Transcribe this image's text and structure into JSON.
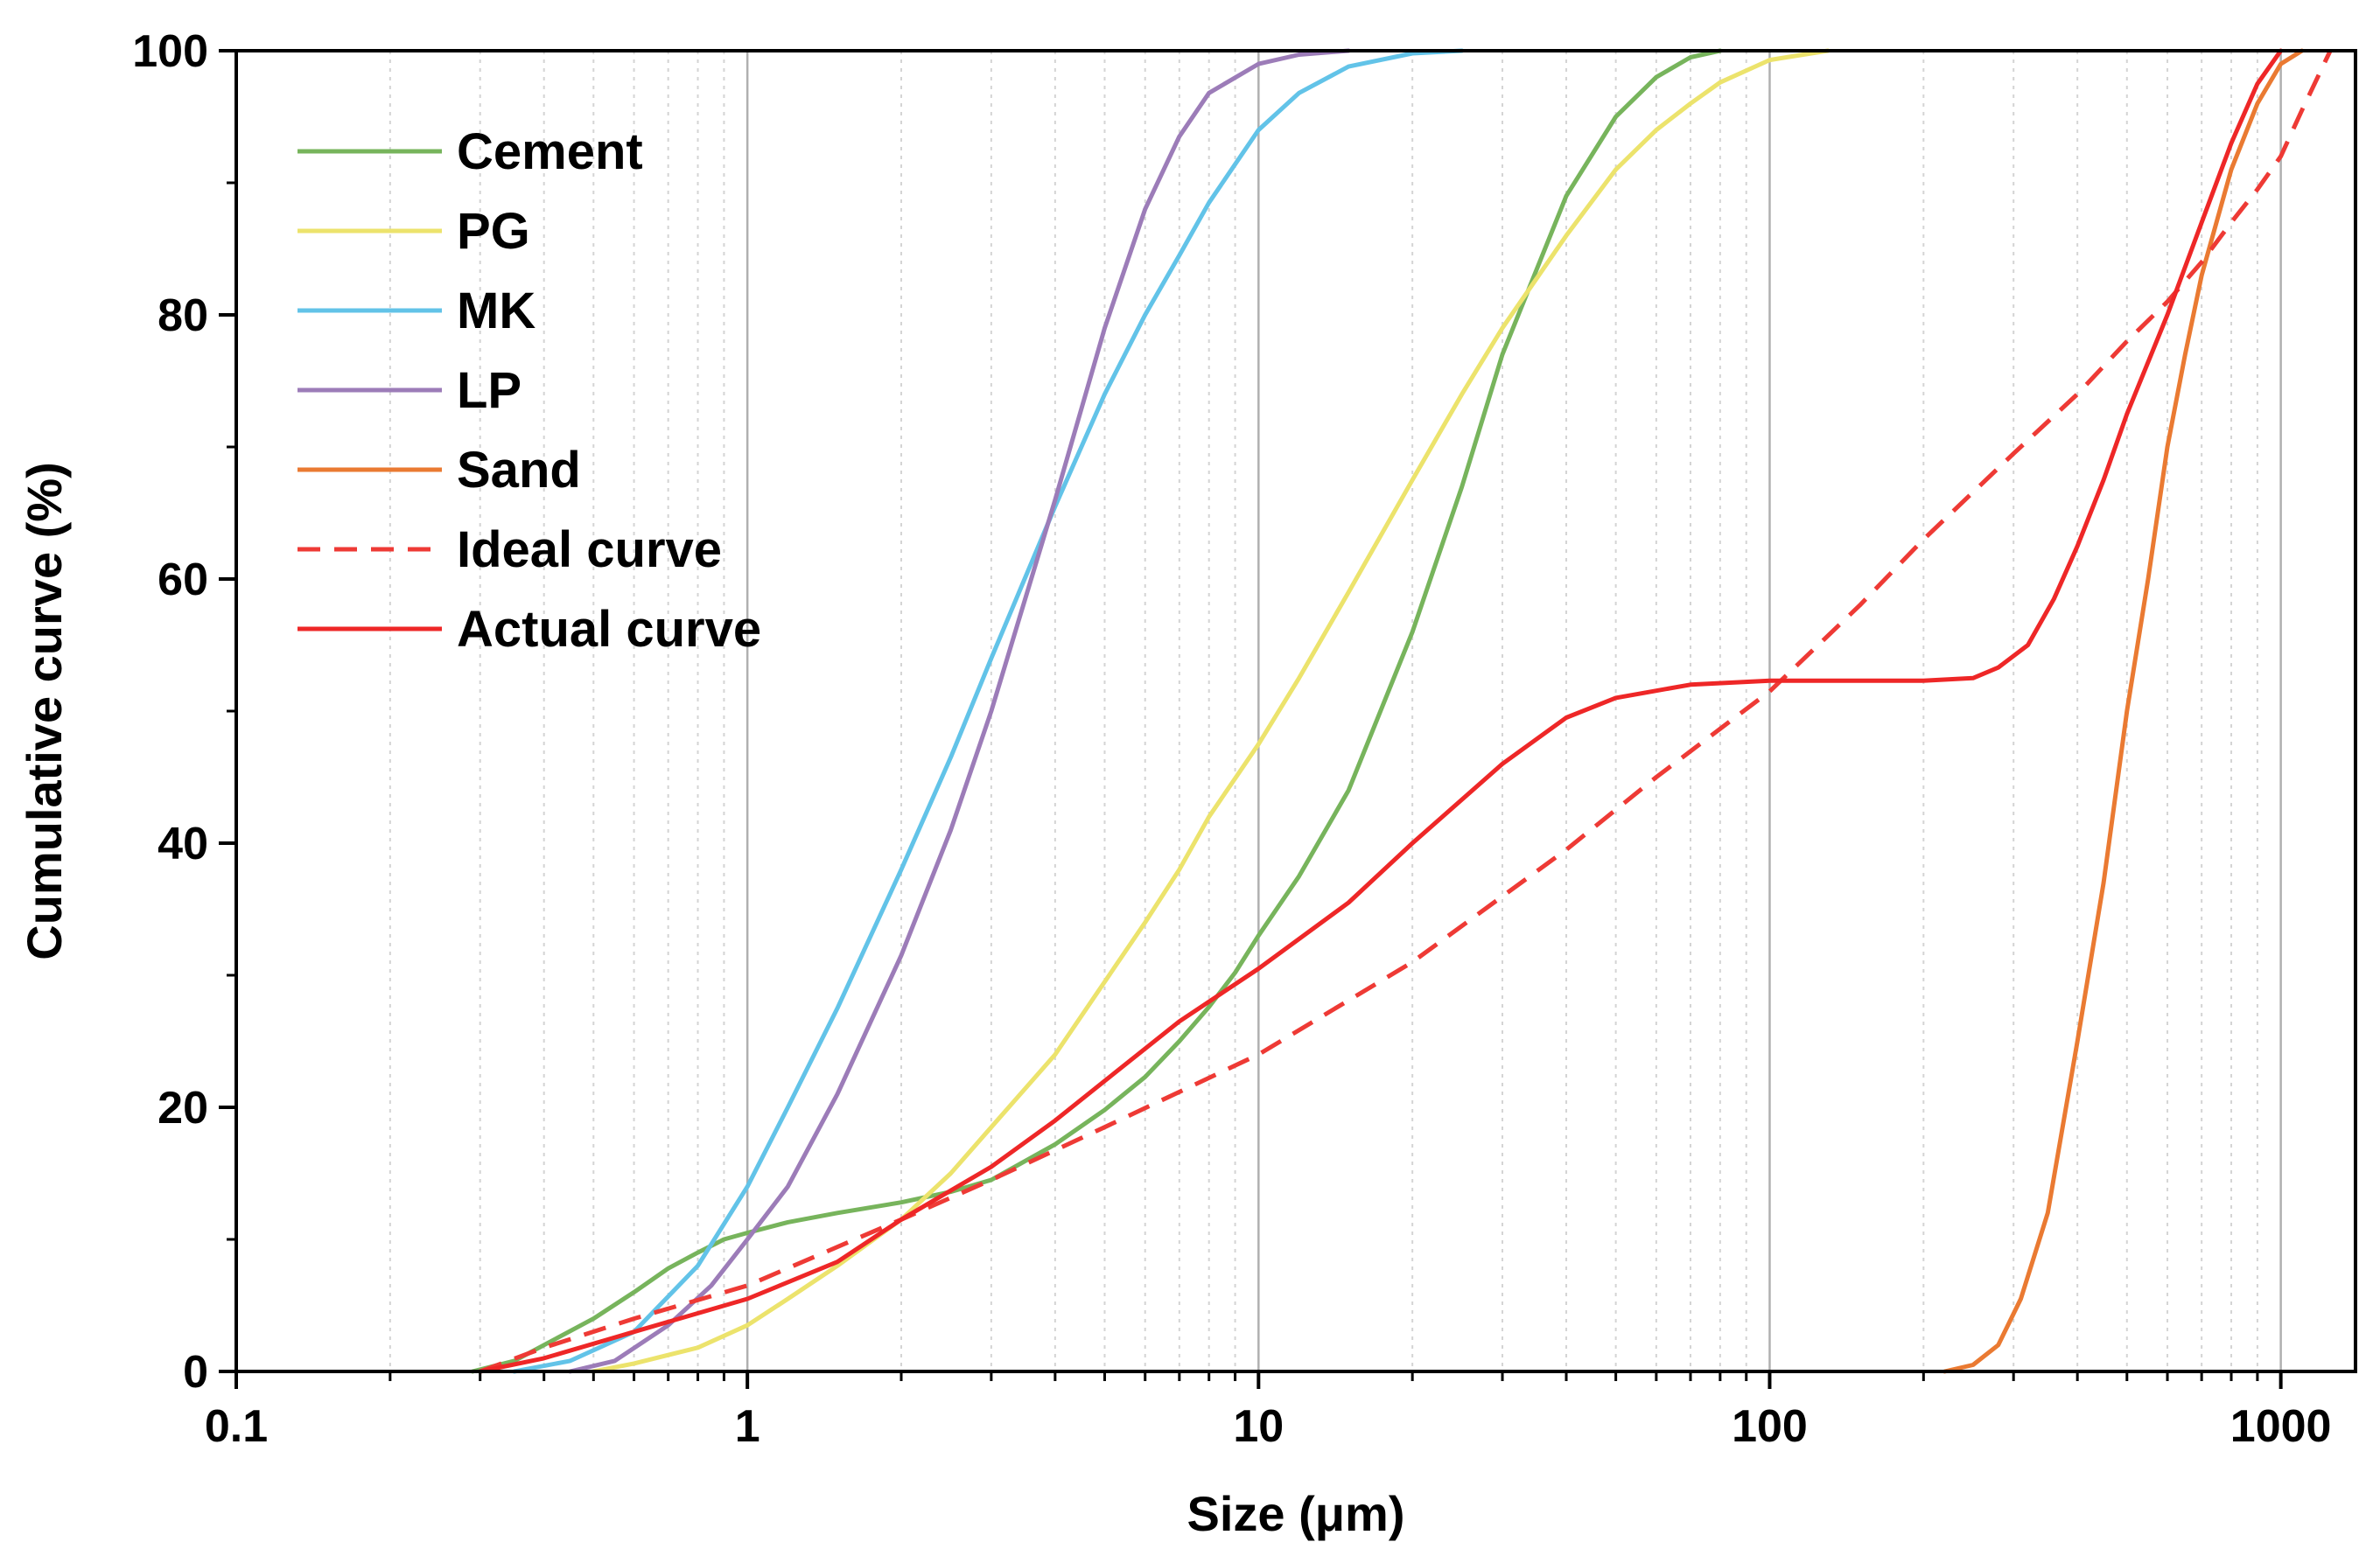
{
  "chart_data": {
    "type": "line",
    "title": "",
    "xlabel": "Size (μm)",
    "ylabel": "Cumulative curve (%)",
    "xscale": "log",
    "xlim": [
      0.1,
      1400
    ],
    "ylim": [
      0,
      100
    ],
    "x_ticks": [
      0.1,
      1,
      10,
      100,
      1000
    ],
    "x_tick_labels": [
      "0.1",
      "1",
      "10",
      "100",
      "1000"
    ],
    "y_ticks": [
      0,
      20,
      40,
      60,
      80,
      100
    ],
    "y_tick_labels": [
      "0",
      "20",
      "40",
      "60",
      "80",
      "100"
    ],
    "grid": "vertical",
    "legend_position": "top-left",
    "series": [
      {
        "name": "Cement",
        "color": "#77b45c",
        "dash": "solid",
        "points": [
          [
            0.29,
            0
          ],
          [
            0.35,
            0.8
          ],
          [
            0.4,
            2
          ],
          [
            0.5,
            4
          ],
          [
            0.6,
            6
          ],
          [
            0.7,
            7.8
          ],
          [
            0.8,
            9
          ],
          [
            0.9,
            10
          ],
          [
            1,
            10.5
          ],
          [
            1.2,
            11.3
          ],
          [
            1.5,
            12
          ],
          [
            2,
            12.8
          ],
          [
            2.5,
            13.6
          ],
          [
            3,
            14.5
          ],
          [
            4,
            17.2
          ],
          [
            5,
            19.8
          ],
          [
            6,
            22.3
          ],
          [
            7,
            25
          ],
          [
            8,
            27.6
          ],
          [
            9,
            30.2
          ],
          [
            10,
            33
          ],
          [
            12,
            37.5
          ],
          [
            15,
            44
          ],
          [
            20,
            56
          ],
          [
            25,
            67
          ],
          [
            30,
            77
          ],
          [
            40,
            89
          ],
          [
            50,
            95
          ],
          [
            60,
            98
          ],
          [
            70,
            99.5
          ],
          [
            80,
            100
          ]
        ]
      },
      {
        "name": "PG",
        "color": "#ece36c",
        "dash": "solid",
        "points": [
          [
            0.5,
            0
          ],
          [
            0.6,
            0.6
          ],
          [
            0.8,
            1.8
          ],
          [
            1,
            3.5
          ],
          [
            1.2,
            5.5
          ],
          [
            1.5,
            8
          ],
          [
            2,
            11.5
          ],
          [
            2.5,
            15
          ],
          [
            3,
            18.5
          ],
          [
            4,
            24
          ],
          [
            5,
            29.5
          ],
          [
            6,
            34
          ],
          [
            7,
            38
          ],
          [
            8,
            42
          ],
          [
            10,
            47.5
          ],
          [
            12,
            52.5
          ],
          [
            15,
            59
          ],
          [
            20,
            67.5
          ],
          [
            25,
            74
          ],
          [
            30,
            79
          ],
          [
            40,
            86
          ],
          [
            50,
            91
          ],
          [
            60,
            94
          ],
          [
            70,
            96
          ],
          [
            80,
            97.6
          ],
          [
            100,
            99.3
          ],
          [
            130,
            100
          ]
        ]
      },
      {
        "name": "MK",
        "color": "#62c3e8",
        "dash": "solid",
        "points": [
          [
            0.35,
            0
          ],
          [
            0.45,
            0.8
          ],
          [
            0.6,
            3
          ],
          [
            0.8,
            8
          ],
          [
            1,
            14
          ],
          [
            1.2,
            20
          ],
          [
            1.5,
            27.5
          ],
          [
            2,
            38
          ],
          [
            2.5,
            46.5
          ],
          [
            3,
            54
          ],
          [
            4,
            65.5
          ],
          [
            5,
            74
          ],
          [
            6,
            80
          ],
          [
            7,
            84.5
          ],
          [
            8,
            88.5
          ],
          [
            10,
            94
          ],
          [
            12,
            96.8
          ],
          [
            15,
            98.8
          ],
          [
            20,
            99.8
          ],
          [
            25,
            100
          ]
        ]
      },
      {
        "name": "LP",
        "color": "#9c7cb8",
        "dash": "solid",
        "points": [
          [
            0.45,
            0
          ],
          [
            0.55,
            0.8
          ],
          [
            0.7,
            3.5
          ],
          [
            0.85,
            6.5
          ],
          [
            1,
            10
          ],
          [
            1.2,
            14
          ],
          [
            1.5,
            21
          ],
          [
            2,
            31.5
          ],
          [
            2.5,
            41
          ],
          [
            3,
            50
          ],
          [
            4,
            66
          ],
          [
            5,
            79
          ],
          [
            6,
            88
          ],
          [
            7,
            93.5
          ],
          [
            8,
            96.8
          ],
          [
            10,
            99
          ],
          [
            12,
            99.7
          ],
          [
            15,
            100
          ]
        ]
      },
      {
        "name": "Sand",
        "color": "#ea7a32",
        "dash": "solid",
        "points": [
          [
            220,
            0
          ],
          [
            250,
            0.5
          ],
          [
            280,
            2
          ],
          [
            310,
            5.5
          ],
          [
            350,
            12
          ],
          [
            400,
            25
          ],
          [
            450,
            37
          ],
          [
            500,
            50
          ],
          [
            550,
            60
          ],
          [
            600,
            70
          ],
          [
            650,
            77
          ],
          [
            700,
            83
          ],
          [
            800,
            91
          ],
          [
            900,
            96
          ],
          [
            1000,
            99
          ],
          [
            1100,
            100
          ]
        ]
      },
      {
        "name": "Ideal curve",
        "color": "#ee3a35",
        "dash": "dashed",
        "points": [
          [
            0.3,
            0
          ],
          [
            0.4,
            1.8
          ],
          [
            0.6,
            4
          ],
          [
            1,
            6.5
          ],
          [
            2,
            11.5
          ],
          [
            3,
            14.5
          ],
          [
            5,
            18.5
          ],
          [
            10,
            24
          ],
          [
            20,
            31
          ],
          [
            40,
            39.5
          ],
          [
            60,
            45
          ],
          [
            100,
            51.5
          ],
          [
            150,
            58
          ],
          [
            200,
            63
          ],
          [
            300,
            69.5
          ],
          [
            400,
            74
          ],
          [
            500,
            78
          ],
          [
            600,
            81
          ],
          [
            700,
            84
          ],
          [
            800,
            87
          ],
          [
            900,
            89.5
          ],
          [
            1000,
            92
          ],
          [
            1100,
            95.5
          ],
          [
            1250,
            100
          ]
        ]
      },
      {
        "name": "Actual curve",
        "color": "#ee2727",
        "dash": "solid",
        "points": [
          [
            0.3,
            0
          ],
          [
            0.4,
            1
          ],
          [
            0.6,
            3
          ],
          [
            1,
            5.5
          ],
          [
            1.5,
            8.3
          ],
          [
            2,
            11.5
          ],
          [
            3,
            15.5
          ],
          [
            4,
            19
          ],
          [
            5,
            22
          ],
          [
            7,
            26.5
          ],
          [
            10,
            30.5
          ],
          [
            15,
            35.5
          ],
          [
            20,
            40
          ],
          [
            30,
            46
          ],
          [
            40,
            49.5
          ],
          [
            50,
            51
          ],
          [
            70,
            52
          ],
          [
            100,
            52.3
          ],
          [
            150,
            52.3
          ],
          [
            200,
            52.3
          ],
          [
            250,
            52.5
          ],
          [
            280,
            53.3
          ],
          [
            320,
            55
          ],
          [
            360,
            58.5
          ],
          [
            400,
            62.5
          ],
          [
            450,
            67.5
          ],
          [
            500,
            72.5
          ],
          [
            600,
            80
          ],
          [
            700,
            87
          ],
          [
            800,
            93
          ],
          [
            900,
            97.5
          ],
          [
            1000,
            100
          ]
        ]
      }
    ]
  }
}
